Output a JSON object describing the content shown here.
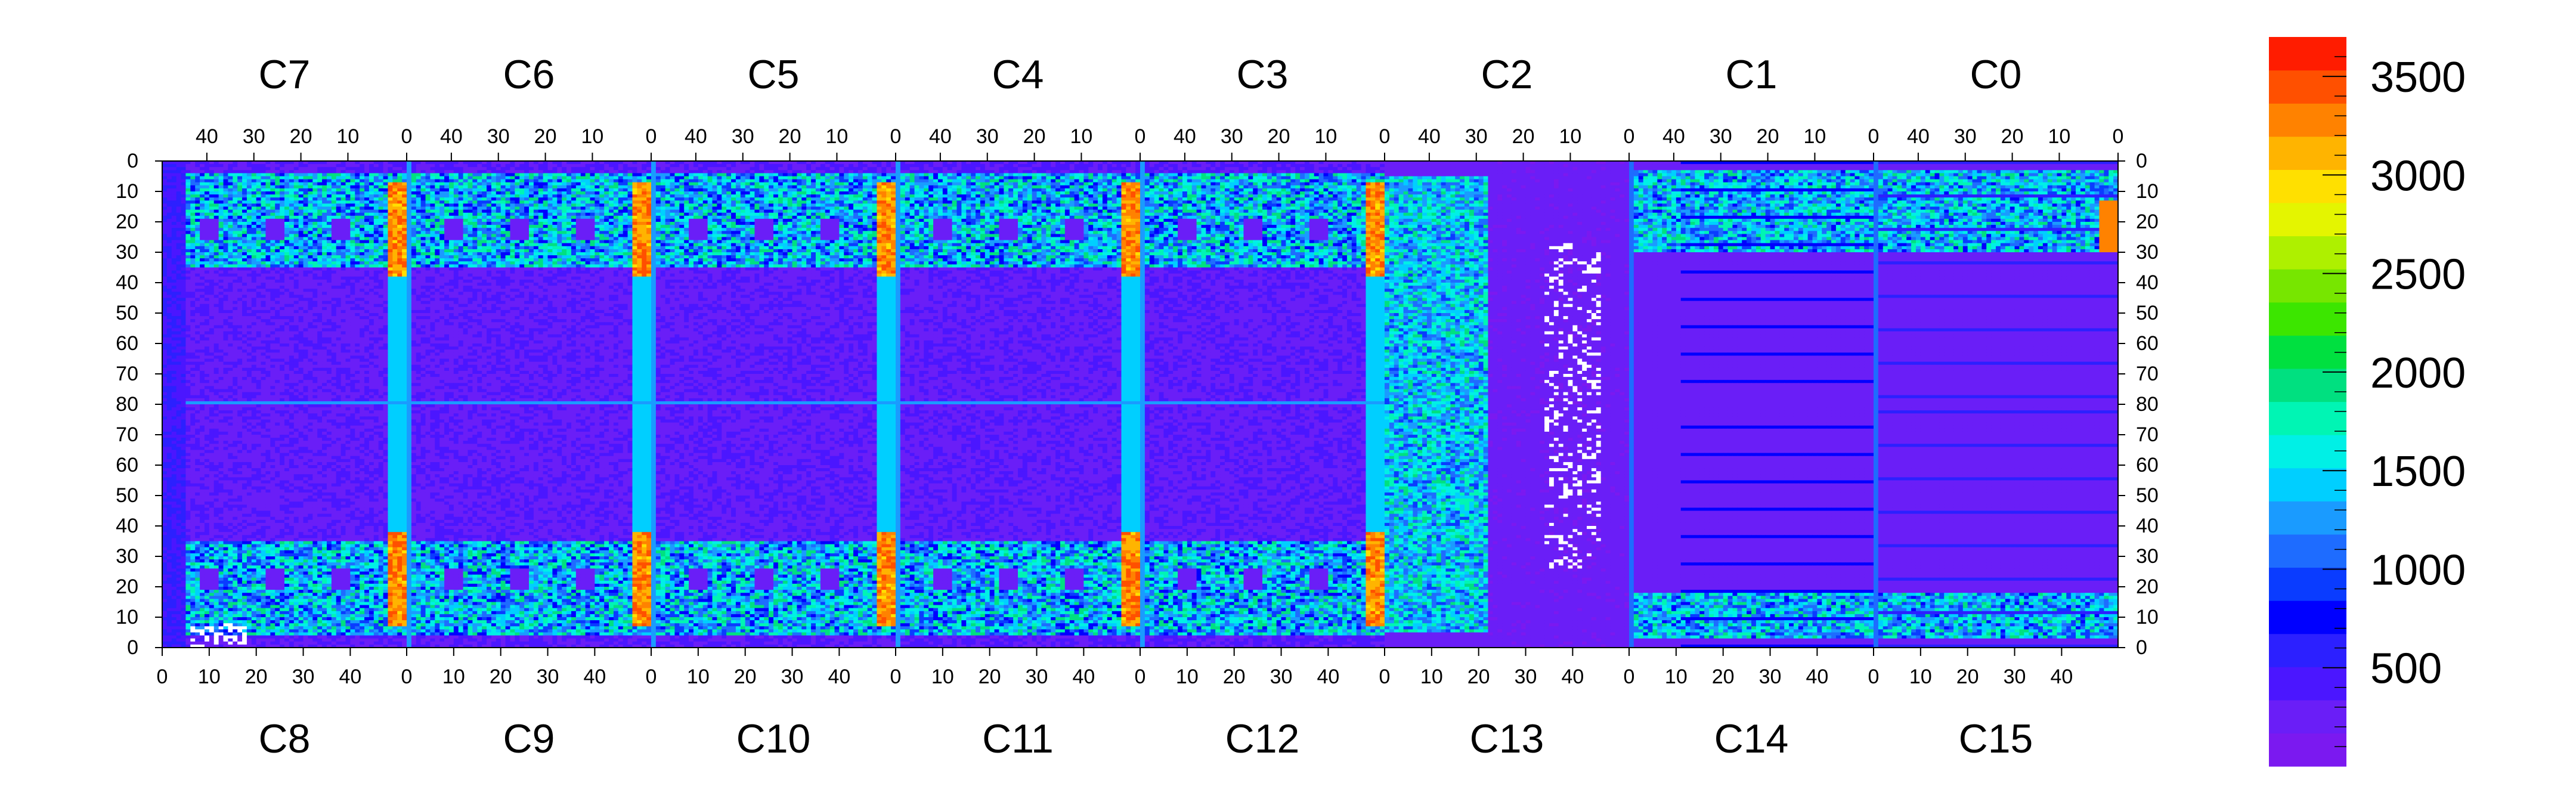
{
  "chart_data": {
    "type": "heatmap",
    "title": "",
    "xlabel": "",
    "ylabel": "",
    "top_row_chips": [
      "C7",
      "C6",
      "C5",
      "C4",
      "C3",
      "C2",
      "C1",
      "C0"
    ],
    "bottom_row_chips": [
      "C8",
      "C9",
      "C10",
      "C11",
      "C12",
      "C13",
      "C14",
      "C15"
    ],
    "top_column_ticks": [
      "40",
      "30",
      "20",
      "10",
      "0"
    ],
    "bottom_column_ticks": [
      "0",
      "10",
      "20",
      "30",
      "40"
    ],
    "row_ticks_top_half": [
      "0",
      "10",
      "20",
      "30",
      "40",
      "50",
      "60",
      "70",
      "80"
    ],
    "row_ticks_bottom_half": [
      "70",
      "60",
      "50",
      "40",
      "30",
      "20",
      "10",
      "0"
    ],
    "columns_per_chip": 52,
    "rows_per_half": 80,
    "colorbar": {
      "min": 0,
      "max": 3700,
      "ticks": [
        500,
        1000,
        1500,
        2000,
        2500,
        3000,
        3500
      ],
      "tick_labels": [
        "500",
        "1000",
        "1500",
        "2000",
        "2500",
        "3000",
        "3500"
      ],
      "colors": [
        "#7b19f0",
        "#6a1ef7",
        "#4b16ff",
        "#2c20ff",
        "#0000ff",
        "#0a3cff",
        "#1e6cff",
        "#1a9bff",
        "#00cfff",
        "#00f0e6",
        "#00f5b4",
        "#00e080",
        "#00e040",
        "#3ce600",
        "#77e600",
        "#aef000",
        "#e4f500",
        "#ffe000",
        "#ffb400",
        "#ff8200",
        "#ff5000",
        "#ff1c00"
      ]
    },
    "baseline_level": 1300,
    "grid": false,
    "legend": "colorbar-right"
  }
}
